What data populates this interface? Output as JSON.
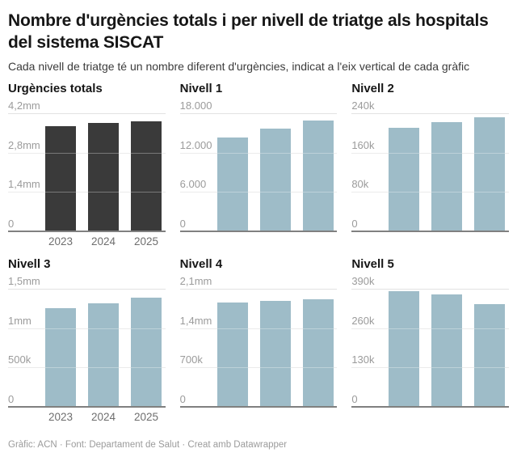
{
  "header": {
    "title": "Nombre d'urgències totals i per nivell de triatge als hospitals del sistema SISCAT",
    "subtitle": "Cada nivell de triatge té un nombre diferent d'urgències, indicat a l'eix vertical de cada gràfic"
  },
  "footer": {
    "text": "Gràfic: ACN · Font: Departament de Salut · Creat amb Datawrapper"
  },
  "colors": {
    "dark": "#3a3a3a",
    "light": "#9ebcc8",
    "gridline": "#e2e2e2",
    "baseline": "#808080",
    "tick_text": "#9b9b9b",
    "axis_text": "#6e6e6e"
  },
  "chart_data": [
    {
      "type": "bar",
      "title": "Urgències totals",
      "categories": [
        "2023",
        "2024",
        "2025"
      ],
      "values": [
        3740000,
        3850000,
        3920000
      ],
      "ylim": [
        0,
        4200000
      ],
      "ytick_values": [
        4200000,
        2800000,
        1400000,
        0
      ],
      "ytick_labels": [
        "4,2mm",
        "2,8mm",
        "1,4mm",
        "0"
      ],
      "bar_color": "dark",
      "show_x_labels": true,
      "grid": "horizontal",
      "legend": "none"
    },
    {
      "type": "bar",
      "title": "Nivell 1",
      "categories": [
        "2023",
        "2024",
        "2025"
      ],
      "values": [
        14300,
        15700,
        16900
      ],
      "ylim": [
        0,
        18000
      ],
      "ytick_values": [
        18000,
        12000,
        6000,
        0
      ],
      "ytick_labels": [
        "18.000",
        "12.000",
        "6.000",
        "0"
      ],
      "bar_color": "light",
      "show_x_labels": false,
      "grid": "horizontal",
      "legend": "none"
    },
    {
      "type": "bar",
      "title": "Nivell 2",
      "categories": [
        "2023",
        "2024",
        "2025"
      ],
      "values": [
        210000,
        222000,
        231000
      ],
      "ylim": [
        0,
        240000
      ],
      "ytick_values": [
        240000,
        160000,
        80000,
        0
      ],
      "ytick_labels": [
        "240k",
        "160k",
        "80k",
        "0"
      ],
      "bar_color": "light",
      "show_x_labels": false,
      "grid": "horizontal",
      "legend": "none"
    },
    {
      "type": "bar",
      "title": "Nivell 3",
      "categories": [
        "2023",
        "2024",
        "2025"
      ],
      "values": [
        1250000,
        1320000,
        1390000
      ],
      "ylim": [
        0,
        1500000
      ],
      "ytick_values": [
        1500000,
        1000000,
        500000,
        0
      ],
      "ytick_labels": [
        "1,5mm",
        "1mm",
        "500k",
        "0"
      ],
      "bar_color": "light",
      "show_x_labels": true,
      "grid": "horizontal",
      "legend": "none"
    },
    {
      "type": "bar",
      "title": "Nivell 4",
      "categories": [
        "2023",
        "2024",
        "2025"
      ],
      "values": [
        1850000,
        1880000,
        1910000
      ],
      "ylim": [
        0,
        2100000
      ],
      "ytick_values": [
        2100000,
        1400000,
        700000,
        0
      ],
      "ytick_labels": [
        "2,1mm",
        "1,4mm",
        "700k",
        "0"
      ],
      "bar_color": "light",
      "show_x_labels": false,
      "grid": "horizontal",
      "legend": "none"
    },
    {
      "type": "bar",
      "title": "Nivell 5",
      "categories": [
        "2023",
        "2024",
        "2025"
      ],
      "values": [
        381000,
        372000,
        339000
      ],
      "ylim": [
        0,
        390000
      ],
      "ytick_values": [
        390000,
        260000,
        130000,
        0
      ],
      "ytick_labels": [
        "390k",
        "260k",
        "130k",
        "0"
      ],
      "bar_color": "light",
      "show_x_labels": false,
      "grid": "horizontal",
      "legend": "none"
    }
  ]
}
